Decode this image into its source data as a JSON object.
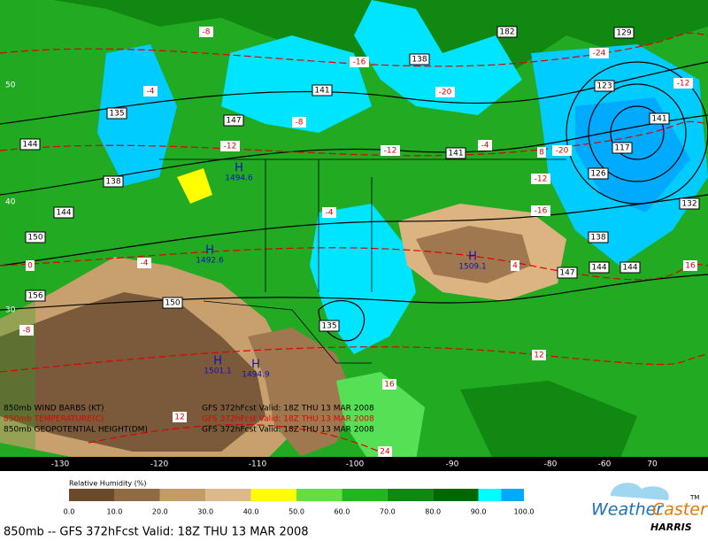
{
  "map": {
    "legend_lines": [
      "850mb WIND BARBS (KT)",
      "850mb TEMPERATURE(C)",
      "850mb GEOPOTENTIAL HEIGHT(DM)"
    ],
    "valid_lines": [
      "GFS 372hFcst Valid: 18Z THU 13 MAR 2008",
      "GFS 372hFcst Valid: 18Z THU 13 MAR 2008",
      "GFS 372hFcst Valid: 18Z THU 13 MAR 2008"
    ],
    "lon_labels": [
      "-130",
      "-120",
      "-110",
      "-100",
      "-90",
      "-80",
      "-60",
      "70"
    ],
    "lat_labels": [
      "50",
      "40",
      "30"
    ],
    "height_labels": [
      "182",
      "138",
      "141",
      "147",
      "135",
      "144",
      "138",
      "144",
      "150",
      "156",
      "150",
      "135",
      "141",
      "123",
      "129",
      "141",
      "117",
      "126",
      "132",
      "138",
      "147",
      "144",
      "144"
    ],
    "temp_labels": [
      "-8",
      "-16",
      "-20",
      "-24",
      "-12",
      "-4",
      "-8",
      "-12",
      "-20",
      "-12",
      "-16",
      "-4",
      "0",
      "-4",
      "-12",
      "-8",
      "4",
      "12",
      "12",
      "16",
      "24",
      "16",
      "8",
      "-4"
    ],
    "centers": [
      {
        "letter": "H",
        "value": "1494.6"
      },
      {
        "letter": "H",
        "value": "1492.6"
      },
      {
        "letter": "H",
        "value": "1509.1"
      },
      {
        "letter": "H",
        "value": "1501.1"
      },
      {
        "letter": "H",
        "value": "1494.9"
      }
    ]
  },
  "colorbar": {
    "title": "Relative Humidity (%)",
    "ticks": [
      "0.0",
      "10.0",
      "20.0",
      "30.0",
      "40.0",
      "50.0",
      "60.0",
      "70.0",
      "80.0",
      "90.0",
      "100.0"
    ]
  },
  "footer": {
    "caption": "850mb -- GFS 372hFcst Valid: 18Z THU 13 MAR 2008",
    "brand_a": "Weather",
    "brand_b": "Caster",
    "tm": "TM",
    "company": "HARRIS"
  }
}
